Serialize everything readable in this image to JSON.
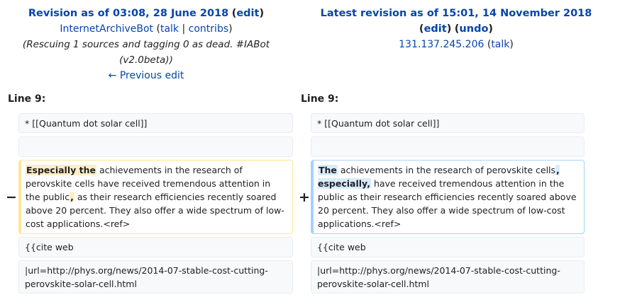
{
  "left_header": {
    "title": "Revision as of 03:08, 28 June 2018",
    "edit": "edit",
    "user": "InternetArchiveBot",
    "talk": "talk",
    "separator": "|",
    "contribs": "contribs",
    "comment_line1": "(Rescuing 1 sources and tagging 0 as dead. #IABot",
    "comment_line2": "(v2.0beta))",
    "prev_edit": "← Previous edit"
  },
  "right_header": {
    "title": "Latest revision as of 15:01, 14 November 2018",
    "edit": "edit",
    "undo": "undo",
    "ip": "131.137.245.206",
    "talk": "talk"
  },
  "line_label_left": "Line 9:",
  "line_label_right": "Line 9:",
  "markers": {
    "minus": "−",
    "plus": "+"
  },
  "rows": {
    "r1_left": "* [[Quantum dot solar cell]]",
    "r1_right": "* [[Quantum dot solar cell]]",
    "r3_left": {
      "hl1": "Especially the",
      "t1": " achievements in the research of perovskite cells have received tremendous attention in the public",
      "hl2": ",",
      "t2": " as their research efficiencies recently soared above 20 percent. They also offer a wide spectrum of low-cost applications.<ref>"
    },
    "r3_right": {
      "hl1": "The",
      "t1": " achievements in the research of perovskite cells",
      "hl2": ", especially,",
      "t2": " have received tremendous attention in the public as their research efficiencies recently soared above 20 percent. They also offer a wide spectrum of low-cost applications.<ref>"
    },
    "r4_left": "{{cite web",
    "r4_right": "{{cite web",
    "r5_left": " |url=http://phys.org/news/2014-07-stable-cost-cutting-perovskite-solar-cell.html",
    "r5_right": " |url=http://phys.org/news/2014-07-stable-cost-cutting-perovskite-solar-cell.html"
  }
}
